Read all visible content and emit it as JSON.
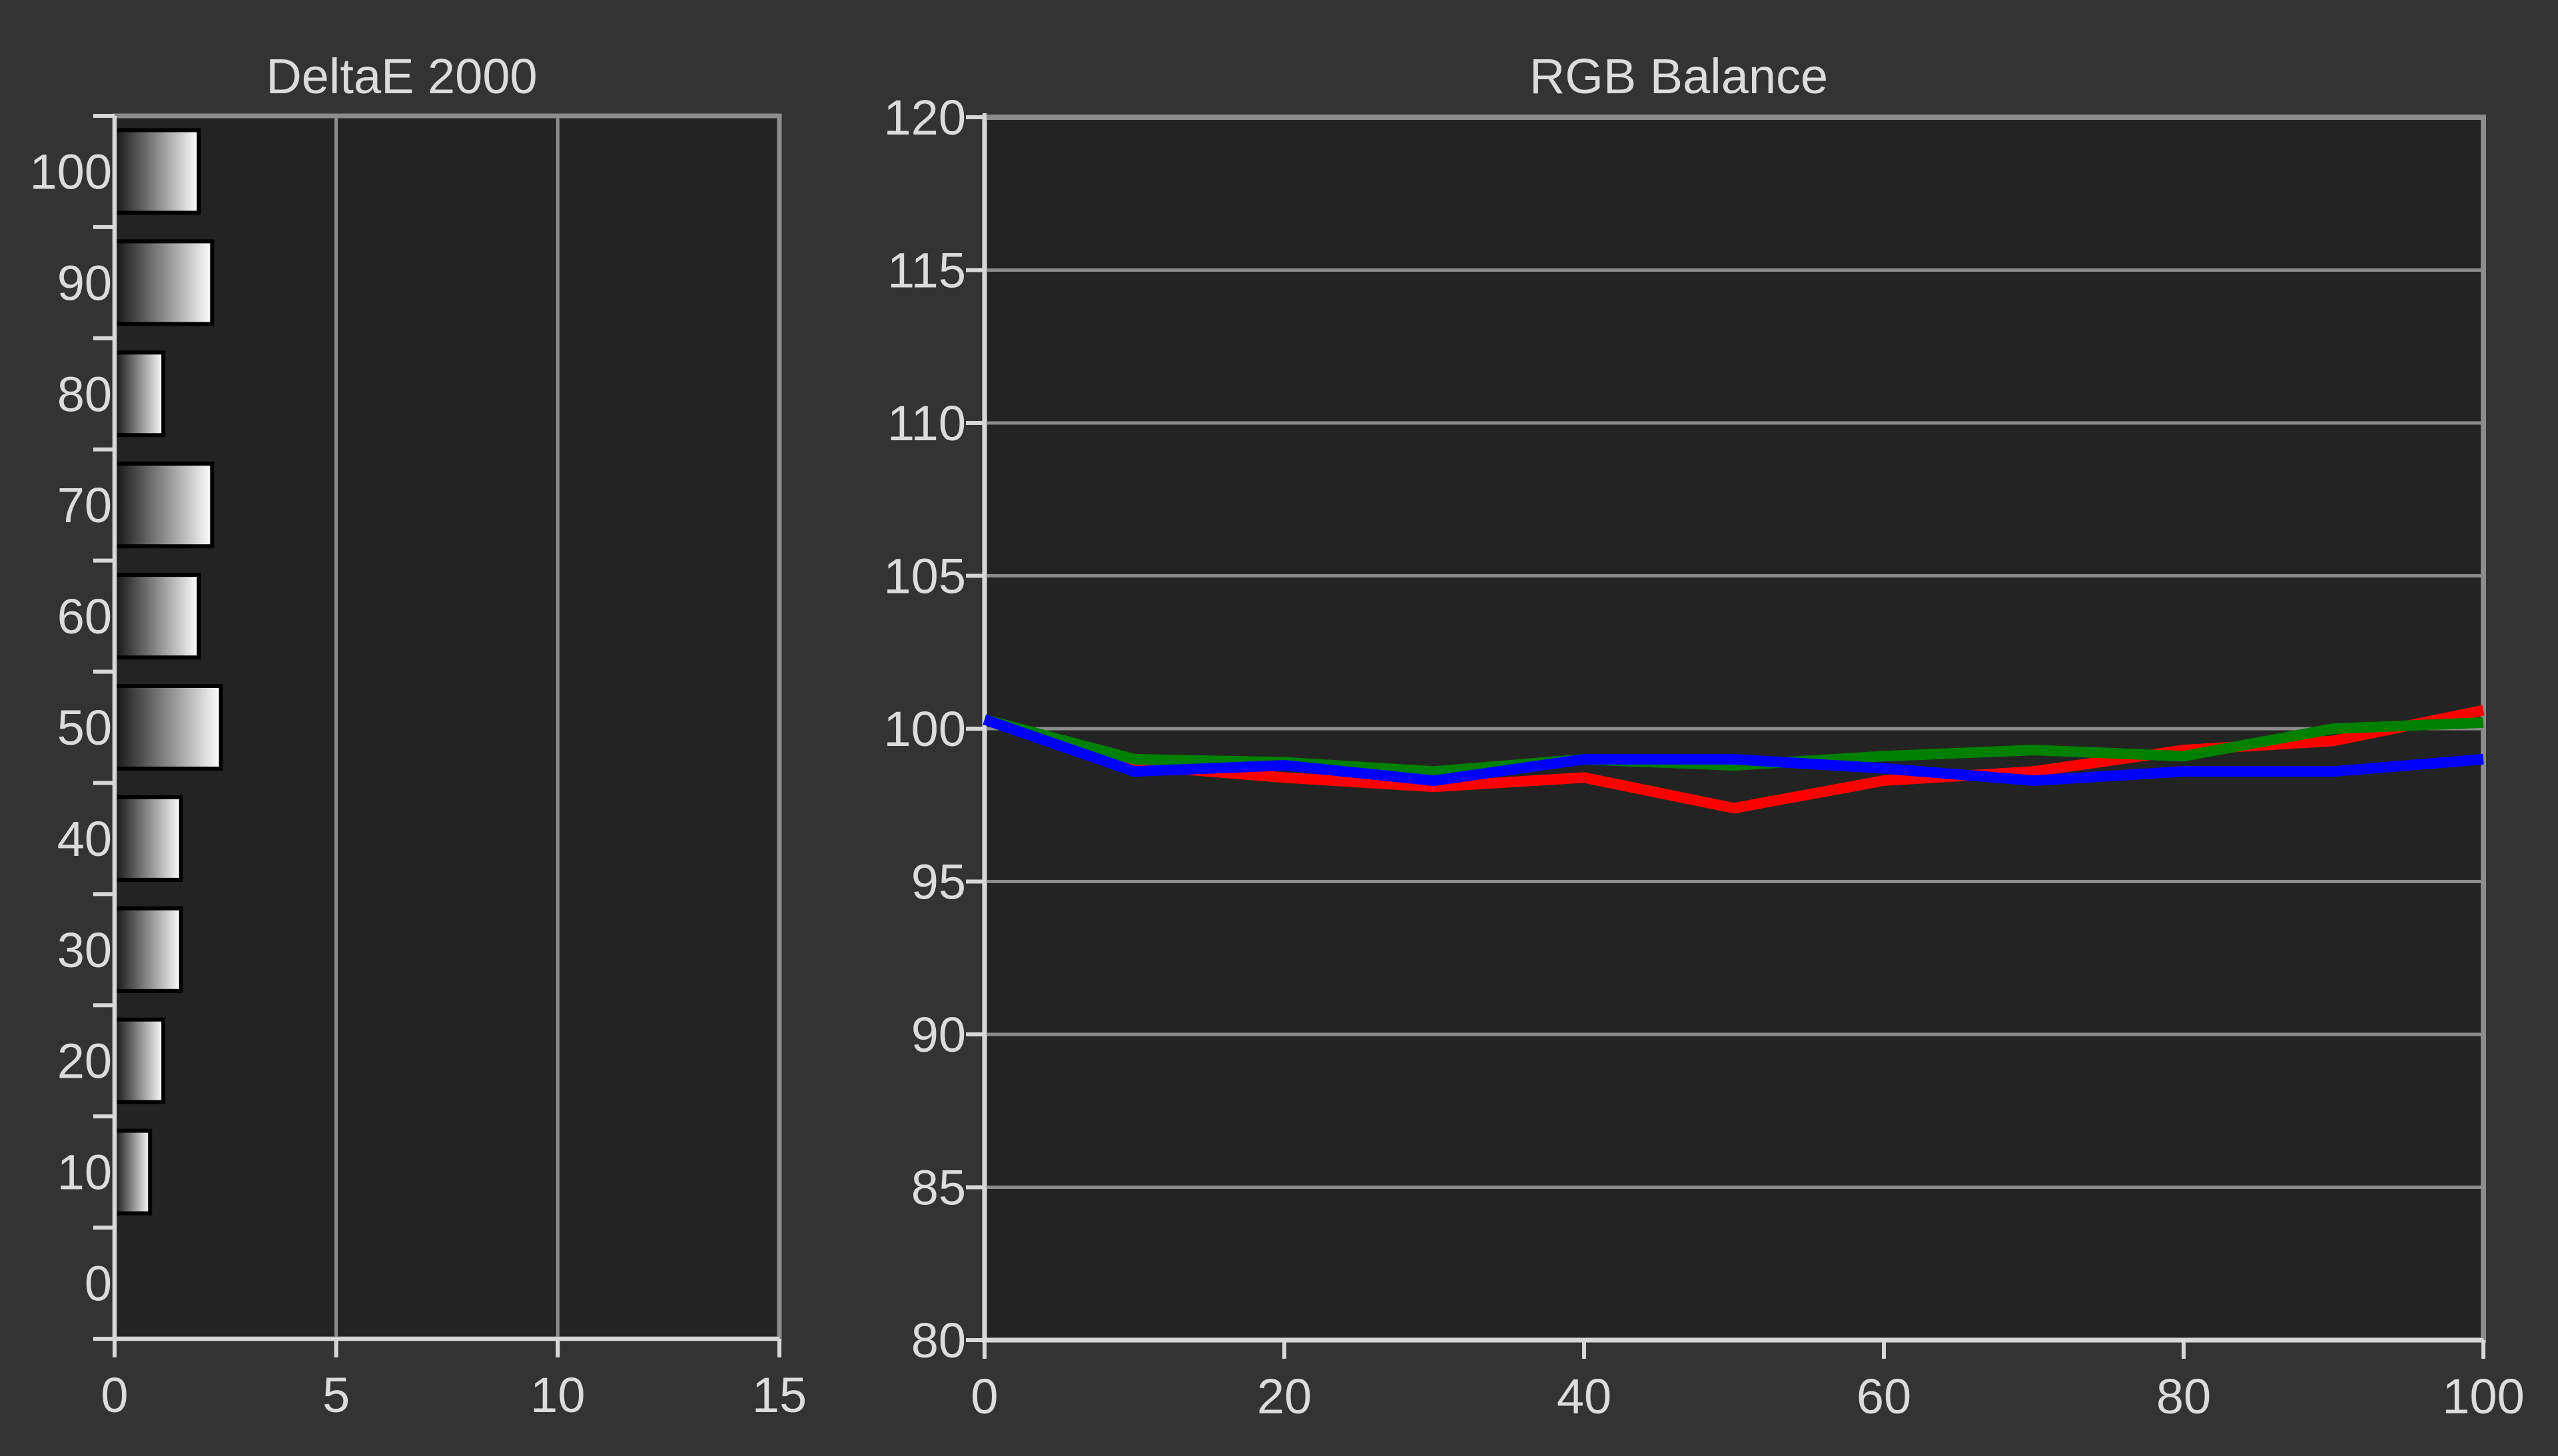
{
  "chart_data": [
    {
      "type": "bar",
      "orientation": "horizontal",
      "title": "DeltaE 2000",
      "xlabel": "",
      "ylabel": "",
      "categories": [
        100,
        90,
        80,
        70,
        60,
        50,
        40,
        30,
        20,
        10,
        0
      ],
      "values": [
        1.9,
        2.2,
        1.1,
        2.2,
        1.9,
        2.4,
        1.5,
        1.5,
        1.1,
        0.8,
        0
      ],
      "xlim": [
        0,
        15
      ],
      "xticks": [
        0,
        5,
        10,
        15
      ],
      "yticks": [
        100,
        90,
        80,
        70,
        60,
        50,
        40,
        30,
        20,
        10,
        0
      ],
      "grid": "vertical",
      "bar_gradient_start": "#141414",
      "bar_gradient_end": "#ffffff",
      "background": "#232323",
      "axis_color": "#8c8c8c"
    },
    {
      "type": "line",
      "title": "RGB Balance",
      "xlabel": "",
      "ylabel": "",
      "x": [
        0,
        10,
        20,
        30,
        40,
        50,
        60,
        70,
        80,
        90,
        100
      ],
      "series": [
        {
          "color": "#ff0000",
          "values": [
            100.3,
            98.8,
            98.4,
            98.1,
            98.4,
            97.4,
            98.3,
            98.6,
            99.3,
            99.6,
            100.6
          ]
        },
        {
          "color": "#008000",
          "values": [
            100.3,
            99.0,
            98.9,
            98.6,
            99.0,
            98.8,
            99.1,
            99.3,
            99.1,
            100.0,
            100.2
          ]
        },
        {
          "color": "#0000ff",
          "values": [
            100.3,
            98.6,
            98.8,
            98.3,
            99.0,
            99.0,
            98.7,
            98.3,
            98.6,
            98.6,
            99.0
          ]
        }
      ],
      "xlim": [
        0,
        100
      ],
      "ylim": [
        80,
        120
      ],
      "xticks": [
        0,
        20,
        40,
        60,
        80,
        100
      ],
      "yticks": [
        80,
        85,
        90,
        95,
        100,
        105,
        110,
        115,
        120
      ],
      "grid": "horizontal",
      "background": "#232323",
      "axis_color": "#8c8c8c"
    }
  ]
}
